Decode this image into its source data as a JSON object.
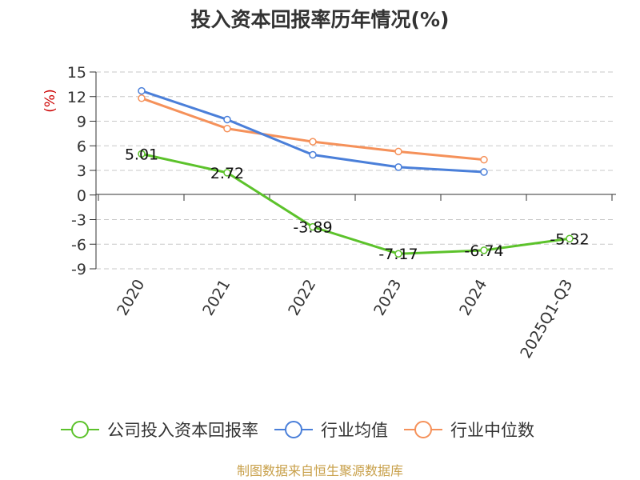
{
  "chart_data": {
    "type": "line",
    "title": "投入资本回报率历年情况(%)",
    "ylabel": "(%)",
    "xlabel": "",
    "categories": [
      "2020",
      "2021",
      "2022",
      "2023",
      "2024",
      "2025Q1-Q3"
    ],
    "ylim": [
      -9,
      15
    ],
    "yticks": [
      15,
      12,
      9,
      6,
      3,
      0,
      -3,
      -6,
      -9
    ],
    "grid": true,
    "legend_position": "bottom",
    "series": [
      {
        "name": "公司投入资本回报率",
        "color": "#5cc22b",
        "values": [
          5.01,
          2.72,
          -3.89,
          -7.17,
          -6.74,
          -5.32
        ],
        "labels": [
          "5.01",
          "2.72",
          "-3.89",
          "-7.17",
          "-6.74",
          "-5.32"
        ]
      },
      {
        "name": "行业均值",
        "color": "#4a7fd9",
        "values": [
          12.7,
          9.2,
          4.9,
          3.4,
          2.8,
          null
        ]
      },
      {
        "name": "行业中位数",
        "color": "#f5915a",
        "values": [
          11.8,
          8.1,
          6.5,
          5.3,
          4.3,
          null
        ]
      }
    ]
  },
  "footer": {
    "source": "制图数据来自恒生聚源数据库",
    "color": "#c8a04a"
  }
}
